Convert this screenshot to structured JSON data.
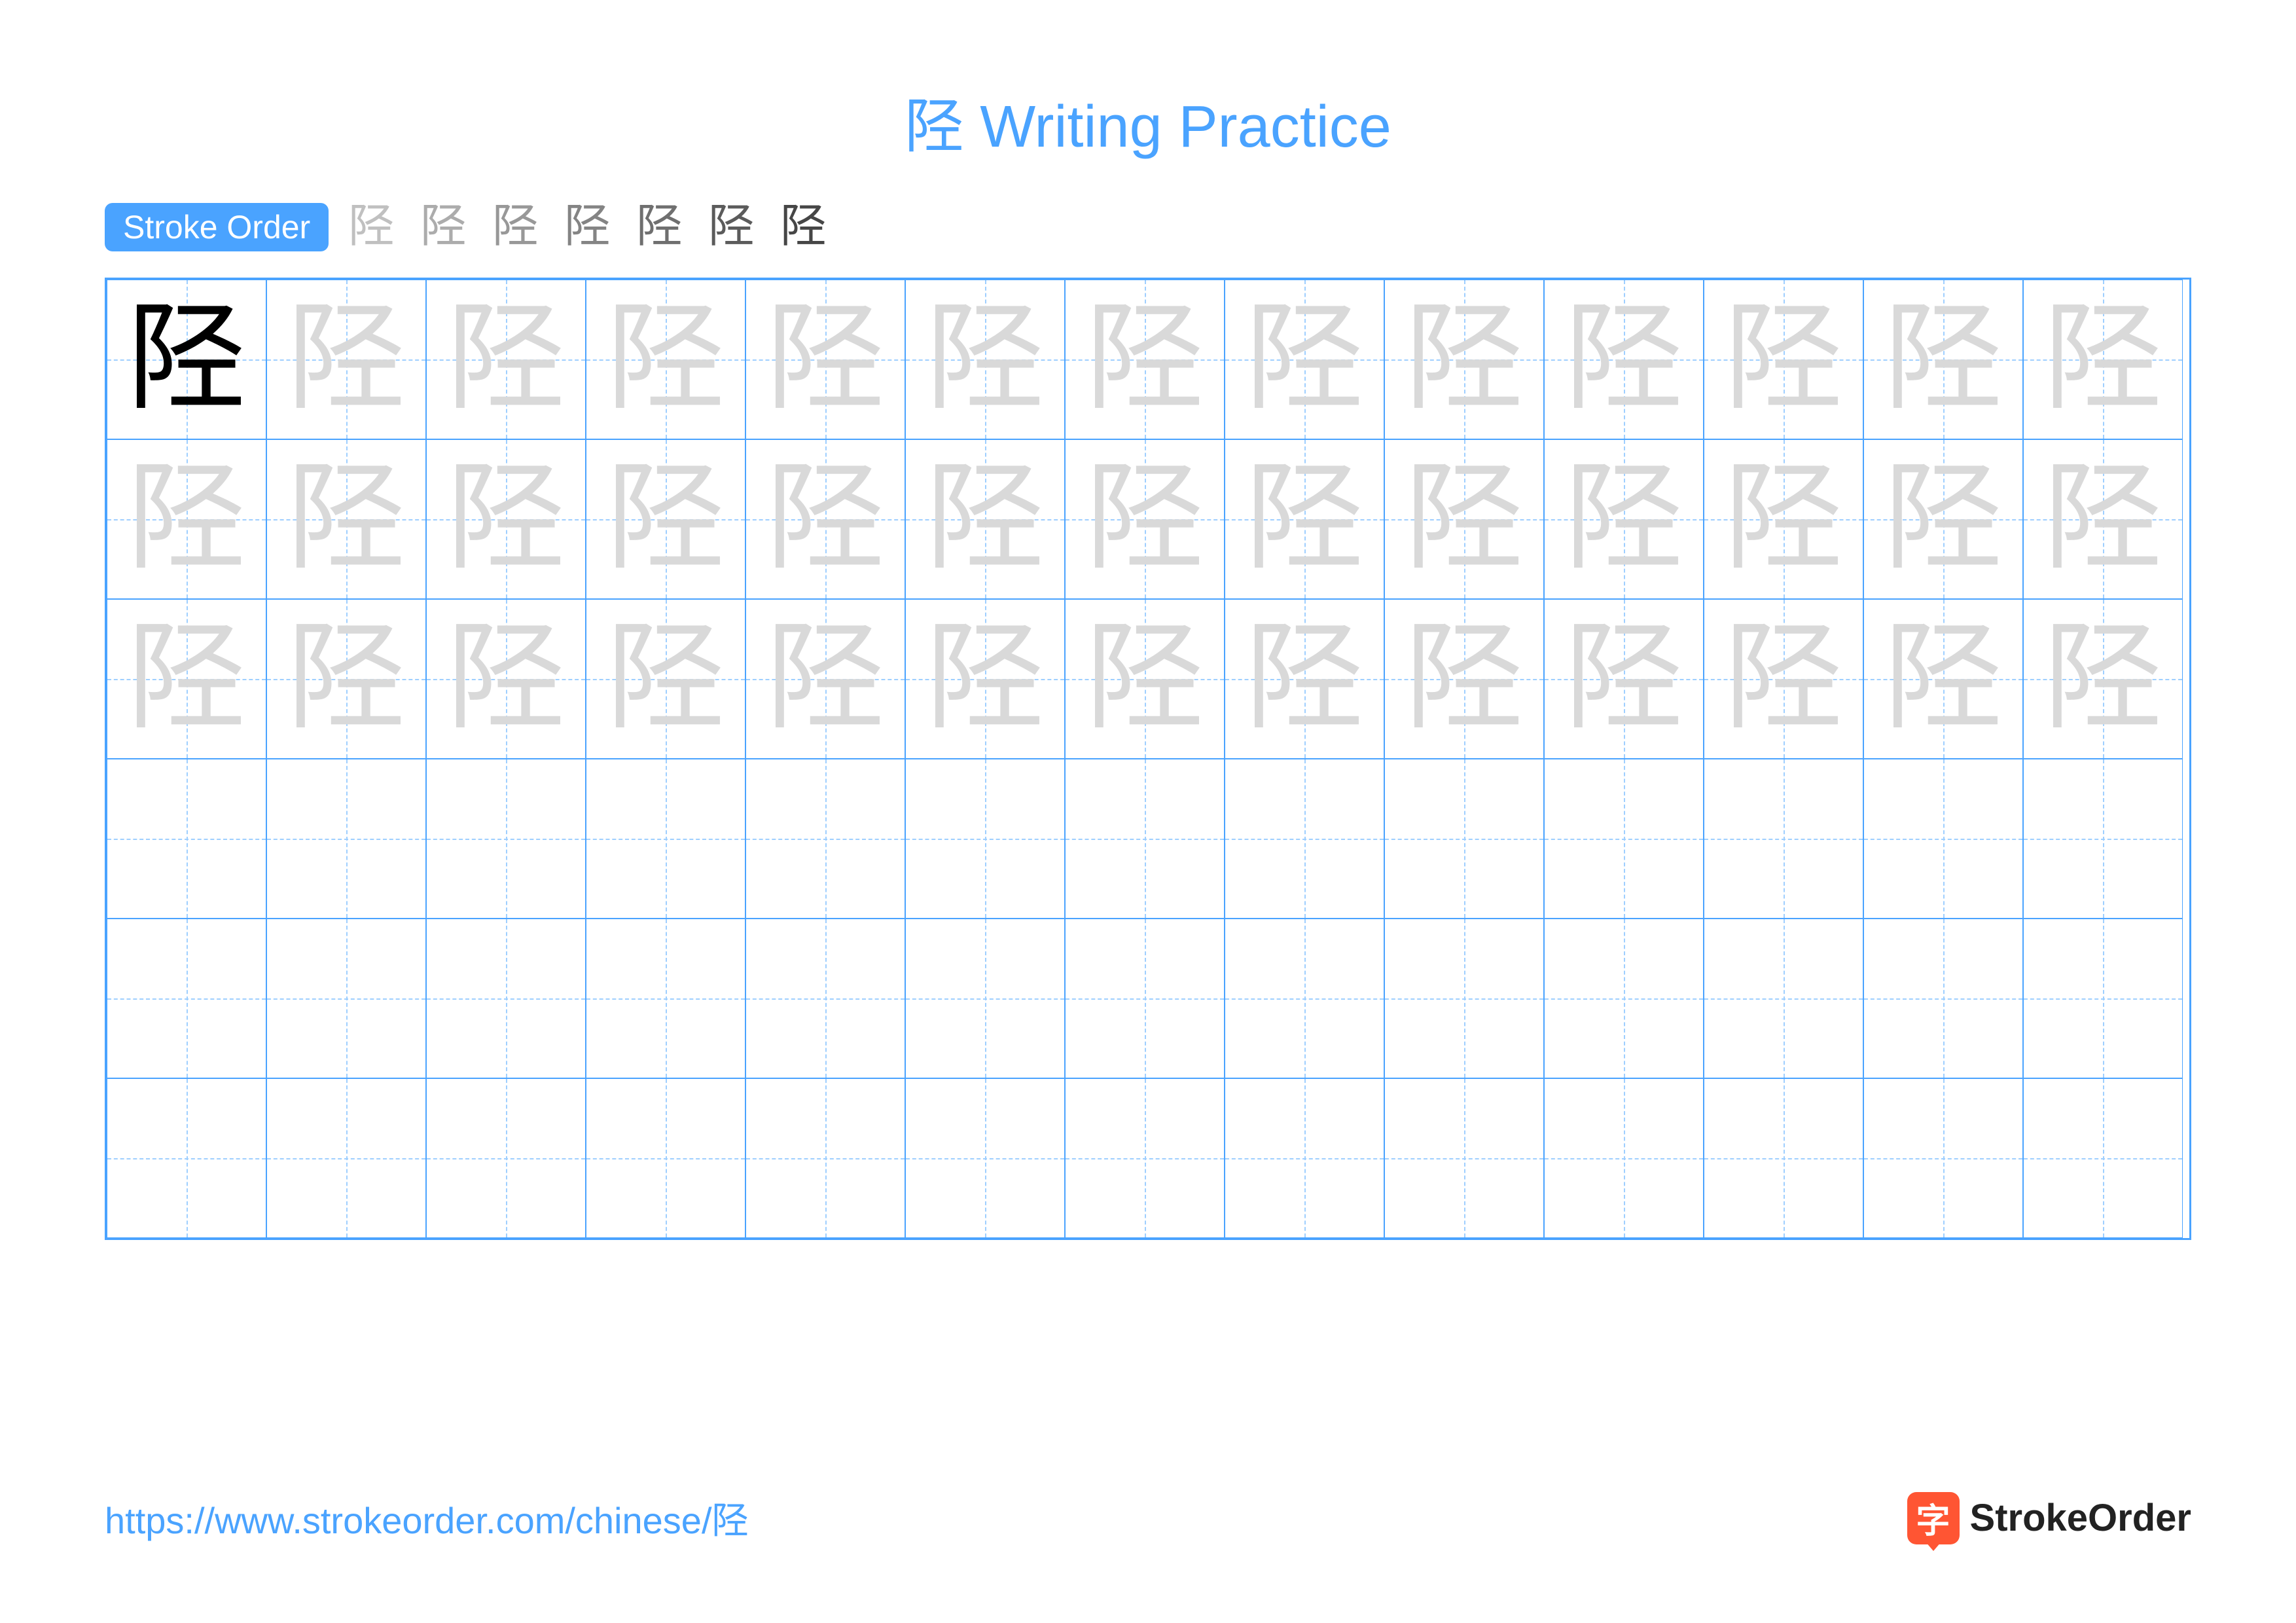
{
  "title": "陉 Writing Practice",
  "character": "陉",
  "stroke_order_label": "Stroke Order",
  "stroke_steps": [
    "陉",
    "陉",
    "陉",
    "陉",
    "陉",
    "陉",
    "陉"
  ],
  "grid": {
    "rows": 6,
    "cols": 13,
    "cell_size": 244,
    "border_color": "#4aa3ff",
    "guide_color": "#9fcfff",
    "char_rows_with_ghost": 3,
    "example_char_color": "#000000",
    "ghost_char_color": "#d9d9d9",
    "char_fontsize": 180
  },
  "colors": {
    "title": "#4aa3ff",
    "badge_bg": "#4aa3ff",
    "badge_text": "#ffffff",
    "stroke_step": "#333333",
    "url": "#4aa3ff",
    "logo_bg": "#ff5533",
    "logo_text": "#222222",
    "background": "#ffffff"
  },
  "footer": {
    "url": "https://www.strokeorder.com/chinese/陉",
    "logo_char": "字",
    "logo_text": "StrokeOrder"
  }
}
